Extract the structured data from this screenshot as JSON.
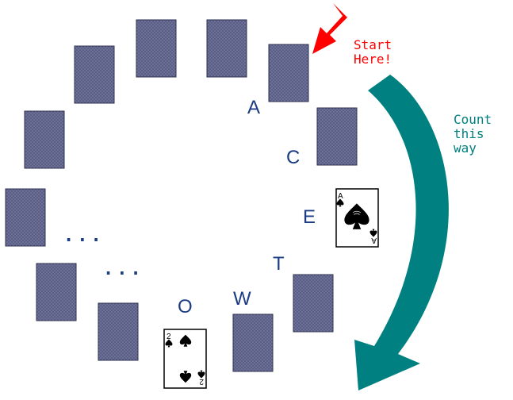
{
  "annotations": {
    "start": [
      "Start",
      "Here!"
    ],
    "count": [
      "Count",
      "this",
      "way"
    ]
  },
  "letters": [
    "A",
    "C",
    "E",
    "T",
    "W",
    "O"
  ],
  "ellipsis": [
    "...",
    "..."
  ],
  "cards": {
    "ace": {
      "rank": "A",
      "suit": "spade"
    },
    "two": {
      "rank": "2",
      "suit": "spade"
    }
  },
  "colors": {
    "card_back": "#5a5e84",
    "letter_blue": "#1b3c84",
    "arrow_red": "#ff0000",
    "arrow_teal": "#008080",
    "start_text": "#ff0000",
    "count_text": "#008080"
  }
}
